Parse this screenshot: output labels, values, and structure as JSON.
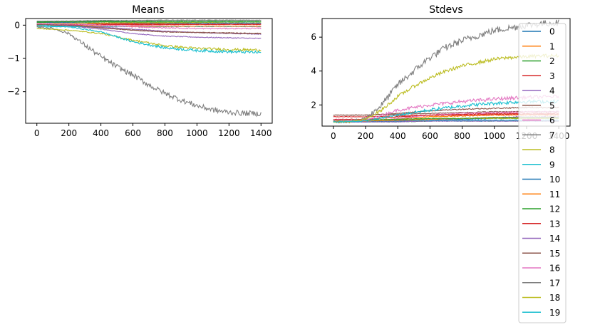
{
  "colors": {
    "tab10": [
      "#1f77b4",
      "#ff7f0e",
      "#2ca02c",
      "#d62728",
      "#9467bd",
      "#8c564b",
      "#e377c2",
      "#7f7f7f",
      "#bcbd22",
      "#17becf"
    ]
  },
  "chart_data": [
    {
      "type": "line",
      "title": "Means",
      "xlabel": "",
      "ylabel": "",
      "xlim": [
        -70,
        1470
      ],
      "ylim": [
        -2.95,
        0.2
      ],
      "xticks": [
        0,
        200,
        400,
        600,
        800,
        1000,
        1200,
        1400
      ],
      "yticks": [
        0,
        -1,
        -2
      ],
      "ytick_labels": [
        "0",
        "−1",
        "−2"
      ],
      "grid": false,
      "noise": 0.02,
      "series": [
        {
          "name": "0",
          "x": [
            0,
            200,
            400,
            600,
            800,
            1000,
            1200,
            1400
          ],
          "values": [
            0.08,
            0.08,
            0.07,
            0.07,
            0.06,
            0.06,
            0.06,
            0.06
          ]
        },
        {
          "name": "1",
          "x": [
            0,
            200,
            400,
            600,
            800,
            1000,
            1200,
            1400
          ],
          "values": [
            -0.02,
            0.0,
            0.05,
            0.05,
            0.04,
            0.03,
            0.03,
            0.03
          ]
        },
        {
          "name": "2",
          "x": [
            0,
            200,
            400,
            600,
            800,
            1000,
            1200,
            1400
          ],
          "values": [
            0.08,
            0.1,
            0.12,
            0.13,
            0.14,
            0.14,
            0.14,
            0.14
          ]
        },
        {
          "name": "3",
          "x": [
            0,
            200,
            400,
            600,
            800,
            1000,
            1200,
            1400
          ],
          "values": [
            0.05,
            0.06,
            0.05,
            0.04,
            0.03,
            0.03,
            0.03,
            0.03
          ]
        },
        {
          "name": "4",
          "x": [
            0,
            200,
            400,
            600,
            800,
            1000,
            1200,
            1400
          ],
          "values": [
            0.0,
            -0.02,
            -0.12,
            -0.25,
            -0.33,
            -0.36,
            -0.38,
            -0.4
          ]
        },
        {
          "name": "5",
          "x": [
            0,
            200,
            400,
            600,
            800,
            1000,
            1200,
            1400
          ],
          "values": [
            0.02,
            0.0,
            -0.08,
            -0.15,
            -0.2,
            -0.22,
            -0.23,
            -0.25
          ]
        },
        {
          "name": "6",
          "x": [
            0,
            200,
            400,
            600,
            800,
            1000,
            1200,
            1400
          ],
          "values": [
            0.02,
            0.03,
            0.02,
            0.0,
            -0.02,
            -0.03,
            -0.03,
            -0.05
          ]
        },
        {
          "name": "7",
          "x": [
            0,
            200,
            400,
            600,
            800,
            1000,
            1200,
            1400
          ],
          "values": [
            0.12,
            0.13,
            0.14,
            0.14,
            0.15,
            0.15,
            0.15,
            0.15
          ]
        },
        {
          "name": "8",
          "x": [
            0,
            200,
            400,
            600,
            800,
            1000,
            1200,
            1400
          ],
          "values": [
            0.05,
            0.06,
            0.07,
            0.08,
            0.08,
            0.08,
            0.09,
            0.09
          ]
        },
        {
          "name": "9",
          "x": [
            0,
            200,
            400,
            600,
            800,
            1000,
            1200,
            1400
          ],
          "values": [
            -0.05,
            -0.05,
            -0.04,
            -0.04,
            -0.04,
            -0.04,
            -0.04,
            -0.04
          ]
        },
        {
          "name": "10",
          "x": [
            0,
            200,
            400,
            600,
            800,
            1000,
            1200,
            1400
          ],
          "values": [
            0.1,
            0.1,
            0.1,
            0.1,
            0.1,
            0.1,
            0.1,
            0.1
          ]
        },
        {
          "name": "11",
          "x": [
            0,
            200,
            400,
            600,
            800,
            1000,
            1200,
            1400
          ],
          "values": [
            0.0,
            0.0,
            -0.02,
            -0.03,
            -0.03,
            -0.03,
            -0.03,
            -0.03
          ]
        },
        {
          "name": "12",
          "x": [
            0,
            200,
            400,
            600,
            800,
            1000,
            1200,
            1400
          ],
          "values": [
            0.1,
            0.1,
            0.1,
            0.1,
            0.1,
            0.1,
            0.1,
            0.1
          ]
        },
        {
          "name": "13",
          "x": [
            0,
            200,
            400,
            600,
            800,
            1000,
            1200,
            1400
          ],
          "values": [
            0.0,
            0.01,
            0.02,
            0.02,
            0.02,
            0.02,
            0.02,
            0.02
          ]
        },
        {
          "name": "14",
          "x": [
            0,
            200,
            400,
            600,
            800,
            1000,
            1200,
            1400
          ],
          "values": [
            0.02,
            0.0,
            -0.05,
            -0.12,
            -0.18,
            -0.22,
            -0.25,
            -0.27
          ]
        },
        {
          "name": "15",
          "x": [
            0,
            200,
            400,
            600,
            800,
            1000,
            1200,
            1400
          ],
          "values": [
            0.02,
            0.0,
            -0.08,
            -0.15,
            -0.2,
            -0.22,
            -0.24,
            -0.26
          ]
        },
        {
          "name": "16",
          "x": [
            0,
            200,
            400,
            600,
            800,
            1000,
            1200,
            1400
          ],
          "values": [
            0.05,
            0.04,
            0.0,
            -0.05,
            -0.08,
            -0.1,
            -0.1,
            -0.1
          ]
        },
        {
          "name": "17",
          "x": [
            0,
            100,
            200,
            300,
            400,
            500,
            600,
            700,
            800,
            900,
            1000,
            1100,
            1200,
            1300,
            1400
          ],
          "values": [
            -0.05,
            -0.1,
            -0.25,
            -0.6,
            -0.95,
            -1.25,
            -1.5,
            -1.8,
            -2.05,
            -2.25,
            -2.42,
            -2.55,
            -2.62,
            -2.65,
            -2.66
          ]
        },
        {
          "name": "18",
          "x": [
            0,
            200,
            400,
            600,
            800,
            1000,
            1200,
            1400
          ],
          "values": [
            -0.1,
            -0.15,
            -0.25,
            -0.45,
            -0.62,
            -0.7,
            -0.73,
            -0.75
          ]
        },
        {
          "name": "19",
          "x": [
            0,
            200,
            400,
            600,
            800,
            1000,
            1200,
            1400
          ],
          "values": [
            0.0,
            -0.05,
            -0.2,
            -0.5,
            -0.68,
            -0.76,
            -0.8,
            -0.82
          ]
        }
      ]
    },
    {
      "type": "line",
      "title": "Stdevs",
      "xlabel": "",
      "ylabel": "",
      "xlim": [
        -70,
        1470
      ],
      "ylim": [
        0.75,
        7.1
      ],
      "xticks": [
        0,
        200,
        400,
        600,
        800,
        1000,
        1200,
        1400
      ],
      "yticks": [
        2,
        4,
        6
      ],
      "ytick_labels": [
        "2",
        "4",
        "6"
      ],
      "grid": false,
      "noise": 0.05,
      "legend_position": "right",
      "series": [
        {
          "name": "0",
          "x": [
            0,
            200,
            400,
            600,
            800,
            1000,
            1200,
            1400
          ],
          "values": [
            1.0,
            1.0,
            1.05,
            1.1,
            1.15,
            1.2,
            1.2,
            1.2
          ]
        },
        {
          "name": "1",
          "x": [
            0,
            200,
            400,
            600,
            800,
            1000,
            1200,
            1400
          ],
          "values": [
            1.05,
            1.05,
            1.2,
            1.3,
            1.35,
            1.4,
            1.4,
            1.4
          ]
        },
        {
          "name": "2",
          "x": [
            0,
            200,
            400,
            600,
            800,
            1000,
            1200,
            1400
          ],
          "values": [
            1.0,
            1.0,
            1.0,
            1.05,
            1.05,
            1.05,
            1.05,
            1.05
          ]
        },
        {
          "name": "3",
          "x": [
            0,
            200,
            400,
            600,
            800,
            1000,
            1200,
            1400
          ],
          "values": [
            1.15,
            1.15,
            1.3,
            1.4,
            1.45,
            1.5,
            1.5,
            1.5
          ]
        },
        {
          "name": "4",
          "x": [
            0,
            200,
            400,
            600,
            800,
            1000,
            1200,
            1400
          ],
          "values": [
            1.0,
            1.0,
            1.1,
            1.15,
            1.2,
            1.25,
            1.3,
            1.3
          ]
        },
        {
          "name": "5",
          "x": [
            0,
            200,
            400,
            600,
            800,
            1000,
            1200,
            1400
          ],
          "values": [
            1.4,
            1.4,
            1.45,
            1.5,
            1.55,
            1.6,
            1.6,
            1.6
          ]
        },
        {
          "name": "6",
          "x": [
            0,
            200,
            400,
            600,
            800,
            1000,
            1200,
            1400
          ],
          "values": [
            1.0,
            1.0,
            1.2,
            1.4,
            1.5,
            1.55,
            1.6,
            1.6
          ]
        },
        {
          "name": "7",
          "x": [
            0,
            200,
            400,
            600,
            800,
            1000,
            1200,
            1400
          ],
          "values": [
            1.05,
            1.05,
            1.05,
            1.05,
            1.05,
            1.05,
            1.05,
            1.05
          ]
        },
        {
          "name": "8",
          "x": [
            0,
            200,
            400,
            600,
            800,
            1000,
            1200,
            1400
          ],
          "values": [
            1.1,
            1.1,
            1.15,
            1.2,
            1.2,
            1.2,
            1.2,
            1.2
          ]
        },
        {
          "name": "9",
          "x": [
            0,
            200,
            400,
            600,
            800,
            1000,
            1200,
            1400
          ],
          "values": [
            1.0,
            1.0,
            1.05,
            1.1,
            1.1,
            1.1,
            1.1,
            1.1
          ]
        },
        {
          "name": "10",
          "x": [
            0,
            200,
            400,
            600,
            800,
            1000,
            1200,
            1400
          ],
          "values": [
            1.0,
            1.0,
            1.05,
            1.05,
            1.05,
            1.05,
            1.05,
            1.05
          ]
        },
        {
          "name": "11",
          "x": [
            0,
            200,
            400,
            600,
            800,
            1000,
            1200,
            1400
          ],
          "values": [
            1.05,
            1.05,
            1.1,
            1.15,
            1.2,
            1.25,
            1.25,
            1.25
          ]
        },
        {
          "name": "12",
          "x": [
            0,
            200,
            400,
            600,
            800,
            1000,
            1200,
            1400
          ],
          "values": [
            1.1,
            1.1,
            1.15,
            1.2,
            1.2,
            1.25,
            1.25,
            1.25
          ]
        },
        {
          "name": "13",
          "x": [
            0,
            200,
            400,
            600,
            800,
            1000,
            1200,
            1400
          ],
          "values": [
            1.3,
            1.3,
            1.35,
            1.4,
            1.4,
            1.45,
            1.45,
            1.45
          ]
        },
        {
          "name": "14",
          "x": [
            0,
            200,
            400,
            600,
            800,
            1000,
            1200,
            1400
          ],
          "values": [
            1.0,
            1.0,
            1.0,
            1.05,
            1.05,
            1.05,
            1.05,
            1.05
          ]
        },
        {
          "name": "15",
          "x": [
            0,
            200,
            400,
            600,
            800,
            1000,
            1200,
            1400
          ],
          "values": [
            1.4,
            1.4,
            1.5,
            1.65,
            1.75,
            1.8,
            1.85,
            1.85
          ]
        },
        {
          "name": "16",
          "x": [
            0,
            200,
            400,
            600,
            800,
            1000,
            1200,
            1400
          ],
          "values": [
            1.1,
            1.1,
            1.7,
            2.0,
            2.2,
            2.35,
            2.45,
            2.5
          ]
        },
        {
          "name": "17",
          "x": [
            0,
            100,
            200,
            300,
            400,
            500,
            600,
            700,
            800,
            900,
            1000,
            1100,
            1200,
            1300,
            1400
          ],
          "values": [
            1.0,
            1.0,
            1.2,
            2.0,
            3.2,
            4.0,
            4.8,
            5.4,
            5.8,
            6.1,
            6.4,
            6.55,
            6.7,
            6.8,
            6.85
          ]
        },
        {
          "name": "18",
          "x": [
            0,
            100,
            200,
            300,
            400,
            500,
            600,
            700,
            800,
            900,
            1000,
            1100,
            1200,
            1300,
            1400
          ],
          "values": [
            1.0,
            1.0,
            1.15,
            1.7,
            2.5,
            3.1,
            3.6,
            4.0,
            4.3,
            4.5,
            4.7,
            4.8,
            4.85,
            4.9,
            4.9
          ]
        },
        {
          "name": "19",
          "x": [
            0,
            200,
            400,
            600,
            800,
            1000,
            1200,
            1400
          ],
          "values": [
            1.0,
            1.05,
            1.4,
            1.7,
            1.95,
            2.1,
            2.2,
            2.2
          ]
        }
      ]
    }
  ]
}
